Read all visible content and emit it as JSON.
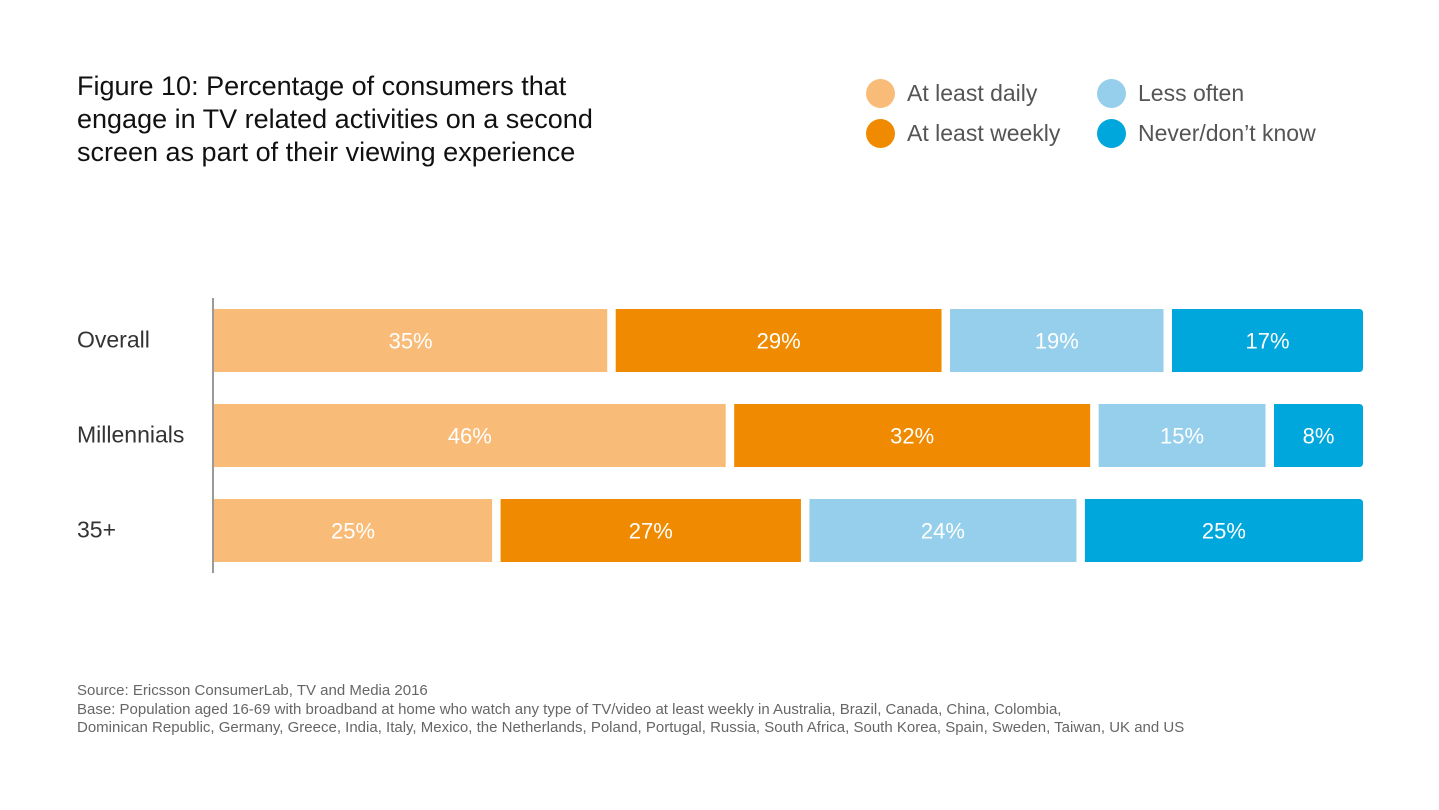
{
  "chart_data": {
    "type": "bar",
    "orientation": "horizontal",
    "stacked": true,
    "title": "Figure 10: Percentage of consumers that engage in TV related activities on a second screen as part of their viewing experience",
    "title_lines": [
      "Figure 10: Percentage of consumers that",
      "engage in TV related activities on a second",
      "screen as part of their viewing experience"
    ],
    "categories": [
      "Overall",
      "Millennials",
      "35+"
    ],
    "series": [
      {
        "name": "At least daily",
        "color": "#F9BB78",
        "values": [
          35,
          46,
          25
        ],
        "labels": [
          "35%",
          "46%",
          "25%"
        ]
      },
      {
        "name": "At least weekly",
        "color": "#F08A00",
        "values": [
          29,
          32,
          27
        ],
        "labels": [
          "29%",
          "32%",
          "27%"
        ]
      },
      {
        "name": "Less often",
        "color": "#95CFEB",
        "values": [
          19,
          15,
          24
        ],
        "labels": [
          "19%",
          "15%",
          "24%"
        ]
      },
      {
        "name": "Never/don’t know",
        "color": "#00A7DC",
        "values": [
          17,
          8,
          25
        ],
        "labels": [
          "17%",
          "8%",
          "25%"
        ]
      }
    ],
    "xlim": [
      0,
      100
    ],
    "grid": false,
    "legend_position": "top-right"
  },
  "footnote": {
    "source": "Source: Ericsson ConsumerLab, TV and Media 2016",
    "base_line1": "Base: Population aged 16-69 with broadband at home who watch any type of TV/video at least weekly in Australia,  Brazil, Canada, China, Colombia,",
    "base_line2": "Dominican Republic, Germany, Greece, India, Italy, Mexico, the Netherlands, Poland, Portugal, Russia, South Africa, South Korea, Spain, Sweden, Taiwan, UK and US"
  }
}
